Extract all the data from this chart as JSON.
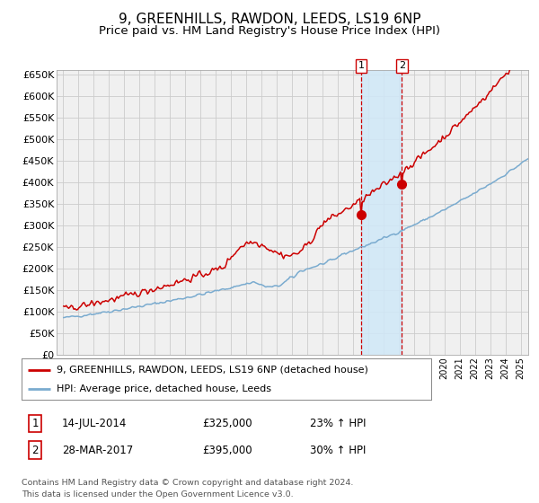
{
  "title": "9, GREENHILLS, RAWDON, LEEDS, LS19 6NP",
  "subtitle": "Price paid vs. HM Land Registry's House Price Index (HPI)",
  "title_fontsize": 11,
  "subtitle_fontsize": 9.5,
  "red_label": "9, GREENHILLS, RAWDON, LEEDS, LS19 6NP (detached house)",
  "blue_label": "HPI: Average price, detached house, Leeds",
  "transaction1_date": "14-JUL-2014",
  "transaction1_price": 325000,
  "transaction1_pct": "23%",
  "transaction2_date": "28-MAR-2017",
  "transaction2_price": 395000,
  "transaction2_pct": "30%",
  "footnote": "Contains HM Land Registry data © Crown copyright and database right 2024.\nThis data is licensed under the Open Government Licence v3.0.",
  "red_color": "#cc0000",
  "blue_color": "#7aabcf",
  "bg_color": "#ffffff",
  "plot_bg_color": "#f0f0f0",
  "shade_color": "#d0e8f8",
  "grid_color": "#cccccc",
  "ylim": [
    0,
    660000
  ],
  "yticks": [
    0,
    50000,
    100000,
    150000,
    200000,
    250000,
    300000,
    350000,
    400000,
    450000,
    500000,
    550000,
    600000,
    650000
  ],
  "start_year": 1995,
  "end_year": 2025
}
